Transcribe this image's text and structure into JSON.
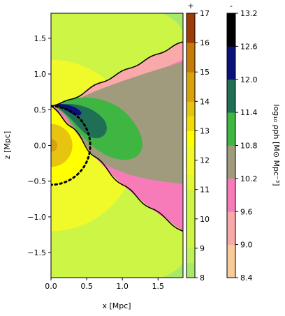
{
  "chart_data": [
    {
      "type": "heatmap",
      "subtype": "filled-contour",
      "xlabel": "x [Mpc]",
      "ylabel": "z [Mpc]",
      "xlim": [
        0,
        1.85
      ],
      "ylim": [
        -1.85,
        1.85
      ],
      "x_ticks": [
        0.0,
        0.5,
        1.0,
        1.5
      ],
      "x_tick_labels": [
        "0.0",
        "0.5",
        "1.0",
        "1.5"
      ],
      "y_ticks": [
        1.5,
        1.0,
        0.5,
        0.0,
        -0.5,
        -1.0,
        -1.5
      ],
      "y_tick_labels": [
        "1.5",
        "1.0",
        "0.5",
        "0.0",
        "−0.5",
        "−1.0",
        "−1.5"
      ],
      "outer_field": {
        "colorbar_sign": "+",
        "description": "yellow-green contours outside the boundary",
        "contours": [
          {
            "level": 8.5,
            "color": "#a8e86a",
            "shape": "corner",
            "corner_upper": [
              [
                1.55,
                1.85
              ],
              [
                1.85,
                1.6
              ]
            ],
            "corner_lower": [
              [
                1.55,
                -1.85
              ],
              [
                1.85,
                -1.65
              ]
            ]
          },
          {
            "level": 9.0,
            "color": "#ccf545",
            "shape": "background"
          },
          {
            "level": 11.5,
            "color": "#f0fa2a",
            "shape": "circle",
            "center": [
              0,
              0
            ],
            "radius": 1.2
          },
          {
            "level": 12.0,
            "color": "#ffff00",
            "shape": "circle",
            "center": [
              0,
              0
            ],
            "radius": 0.55
          },
          {
            "level": 13.0,
            "color": "#e6c410",
            "shape": "circle",
            "center": [
              0,
              0
            ],
            "radius": 0.3
          },
          {
            "level": 13.8,
            "color": "#d7a20c",
            "shape": "circle",
            "center": [
              0,
              0
            ],
            "radius": 0.09
          }
        ]
      },
      "inner_field": {
        "colorbar_sign": "-",
        "description": "density contours inside the boundary",
        "boundary_upper": [
          [
            0.0,
            0.55
          ],
          [
            0.3,
            0.65
          ],
          [
            0.7,
            0.88
          ],
          [
            1.1,
            1.08
          ],
          [
            1.5,
            1.28
          ],
          [
            1.85,
            1.45
          ]
        ],
        "boundary_lower": [
          [
            0.0,
            0.55
          ],
          [
            0.3,
            0.25
          ],
          [
            0.6,
            -0.15
          ],
          [
            1.0,
            -0.55
          ],
          [
            1.4,
            -0.88
          ],
          [
            1.85,
            -1.2
          ]
        ],
        "bands": [
          {
            "level": 9.3,
            "color": "#f9a9a9",
            "region": "upper_band"
          },
          {
            "level": 9.8,
            "color": "#f77bb9",
            "region": "pink_area"
          },
          {
            "level": 10.4,
            "color": "#a09b7d",
            "region": "khaki_area"
          },
          {
            "level": 11.0,
            "color": "#3fb542",
            "region": "green_lobe"
          },
          {
            "level": 11.7,
            "color": "#1f6e56",
            "region": "dark_green_lobe"
          },
          {
            "level": 12.9,
            "color": "#0b117a",
            "region": "navy_core"
          }
        ]
      },
      "dotted_circle": {
        "center": [
          0,
          0
        ],
        "radius": 0.55,
        "style": "dotted",
        "color": "#000000"
      }
    },
    {
      "type": "heatmap",
      "role": "colorbar",
      "sign_label": "+",
      "ticks": [
        8,
        9,
        10,
        11,
        12,
        13,
        14,
        15,
        16,
        17
      ],
      "tick_labels": [
        "8",
        "9",
        "10",
        "11",
        "12",
        "13",
        "14",
        "15",
        "16",
        "17"
      ],
      "range": [
        8,
        17
      ],
      "bands": [
        {
          "from": 8,
          "to": 8.5,
          "color": "#a8e86a"
        },
        {
          "from": 8.5,
          "to": 9,
          "color": "#bdf25a"
        },
        {
          "from": 9,
          "to": 11,
          "color": "#ccf545"
        },
        {
          "from": 11,
          "to": 11.5,
          "color": "#e2f735"
        },
        {
          "from": 11.5,
          "to": 12.5,
          "color": "#f0fa2a"
        },
        {
          "from": 12.5,
          "to": 13,
          "color": "#ffff00"
        },
        {
          "from": 13,
          "to": 13.5,
          "color": "#f0dc08"
        },
        {
          "from": 13.5,
          "to": 14,
          "color": "#e6c410"
        },
        {
          "from": 14,
          "to": 15,
          "color": "#d7a20c"
        },
        {
          "from": 15,
          "to": 16,
          "color": "#c47b08"
        },
        {
          "from": 16,
          "to": 17,
          "color": "#9c3c08"
        }
      ]
    },
    {
      "type": "heatmap",
      "role": "colorbar",
      "sign_label": "-",
      "label": "log₁₀ ρph  [M⊙ Mpc⁻³]",
      "ticks": [
        8.4,
        9.0,
        9.6,
        10.2,
        10.8,
        11.4,
        12.0,
        12.6,
        13.2
      ],
      "tick_labels": [
        "8.4",
        "9.0",
        "9.6",
        "10.2",
        "10.8",
        "11.4",
        "12.0",
        "12.6",
        "13.2"
      ],
      "range": [
        8.4,
        13.2
      ],
      "bands": [
        {
          "from": 8.4,
          "to": 9.0,
          "color": "#f8cc9a"
        },
        {
          "from": 9.0,
          "to": 9.6,
          "color": "#f9a9a9"
        },
        {
          "from": 9.6,
          "to": 10.2,
          "color": "#f77bb9"
        },
        {
          "from": 10.2,
          "to": 10.8,
          "color": "#a09b7d"
        },
        {
          "from": 10.8,
          "to": 11.4,
          "color": "#3fb542"
        },
        {
          "from": 11.4,
          "to": 12.0,
          "color": "#1f6e56"
        },
        {
          "from": 12.0,
          "to": 12.6,
          "color": "#0b117a"
        },
        {
          "from": 12.6,
          "to": 13.2,
          "color": "#000000"
        }
      ]
    }
  ]
}
